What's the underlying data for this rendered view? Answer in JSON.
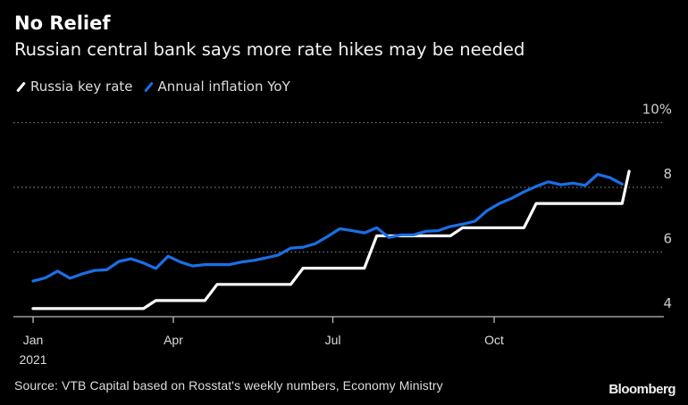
{
  "header": {
    "title": "No Relief",
    "subtitle": "Russian central bank says more rate hikes may be needed"
  },
  "footer": {
    "source": "Source: VTB Capital based on Rosstat's weekly numbers, Economy Ministry",
    "logo": "Bloomberg"
  },
  "chart_data": {
    "type": "line",
    "title": "No Relief",
    "subtitle": "Russian central bank says more rate hikes may be needed",
    "xlabel": "",
    "ylabel": "",
    "ylim": [
      4,
      10
    ],
    "y_ticks": [
      {
        "value": 10,
        "label": "10%"
      },
      {
        "value": 8,
        "label": "8"
      },
      {
        "value": 6,
        "label": "6"
      },
      {
        "value": 4,
        "label": "4"
      }
    ],
    "y_axis_position": "right",
    "x_ticks": [
      {
        "date": "2021-01-11",
        "label": "Jan",
        "sublabel": "2021"
      },
      {
        "date": "2021-04-01",
        "label": "Apr"
      },
      {
        "date": "2021-07-01",
        "label": "Jul"
      },
      {
        "date": "2021-10-01",
        "label": "Oct"
      }
    ],
    "grid": true,
    "legend_placement": "top-left",
    "background": "#000000",
    "series": [
      {
        "name": "Russia key rate",
        "color": "#ffffff",
        "points": [
          [
            "2021-01-11",
            4.25
          ],
          [
            "2021-03-15",
            4.25
          ],
          [
            "2021-03-22",
            4.5
          ],
          [
            "2021-04-19",
            4.5
          ],
          [
            "2021-04-26",
            5.0
          ],
          [
            "2021-06-07",
            5.0
          ],
          [
            "2021-06-14",
            5.5
          ],
          [
            "2021-07-19",
            5.5
          ],
          [
            "2021-07-26",
            6.5
          ],
          [
            "2021-09-06",
            6.5
          ],
          [
            "2021-09-13",
            6.75
          ],
          [
            "2021-10-18",
            6.75
          ],
          [
            "2021-10-25",
            7.5
          ],
          [
            "2021-12-13",
            7.5
          ],
          [
            "2021-12-17",
            8.5
          ]
        ]
      },
      {
        "name": "Annual inflation YoY",
        "color": "#1a6fe6",
        "points": [
          [
            "2021-01-11",
            5.1
          ],
          [
            "2021-01-18",
            5.2
          ],
          [
            "2021-01-25",
            5.41
          ],
          [
            "2021-02-01",
            5.19
          ],
          [
            "2021-02-08",
            5.32
          ],
          [
            "2021-02-15",
            5.43
          ],
          [
            "2021-02-22",
            5.45
          ],
          [
            "2021-03-01",
            5.71
          ],
          [
            "2021-03-08",
            5.79
          ],
          [
            "2021-03-15",
            5.66
          ],
          [
            "2021-03-22",
            5.49
          ],
          [
            "2021-03-29",
            5.87
          ],
          [
            "2021-04-05",
            5.69
          ],
          [
            "2021-04-12",
            5.57
          ],
          [
            "2021-04-19",
            5.61
          ],
          [
            "2021-04-26",
            5.61
          ],
          [
            "2021-05-03",
            5.61
          ],
          [
            "2021-05-10",
            5.69
          ],
          [
            "2021-05-17",
            5.74
          ],
          [
            "2021-05-24",
            5.82
          ],
          [
            "2021-05-31",
            5.91
          ],
          [
            "2021-06-07",
            6.12
          ],
          [
            "2021-06-14",
            6.15
          ],
          [
            "2021-06-21",
            6.26
          ],
          [
            "2021-06-28",
            6.48
          ],
          [
            "2021-07-05",
            6.72
          ],
          [
            "2021-07-12",
            6.66
          ],
          [
            "2021-07-19",
            6.59
          ],
          [
            "2021-07-26",
            6.75
          ],
          [
            "2021-08-02",
            6.45
          ],
          [
            "2021-08-09",
            6.53
          ],
          [
            "2021-08-16",
            6.53
          ],
          [
            "2021-08-23",
            6.64
          ],
          [
            "2021-08-30",
            6.66
          ],
          [
            "2021-09-06",
            6.79
          ],
          [
            "2021-09-13",
            6.86
          ],
          [
            "2021-09-20",
            6.95
          ],
          [
            "2021-09-27",
            7.28
          ],
          [
            "2021-10-04",
            7.5
          ],
          [
            "2021-10-11",
            7.66
          ],
          [
            "2021-10-18",
            7.86
          ],
          [
            "2021-10-25",
            8.03
          ],
          [
            "2021-11-01",
            8.17
          ],
          [
            "2021-11-08",
            8.08
          ],
          [
            "2021-11-15",
            8.13
          ],
          [
            "2021-11-22",
            8.06
          ],
          [
            "2021-11-29",
            8.4
          ],
          [
            "2021-12-06",
            8.3
          ],
          [
            "2021-12-13",
            8.1
          ]
        ]
      }
    ]
  }
}
